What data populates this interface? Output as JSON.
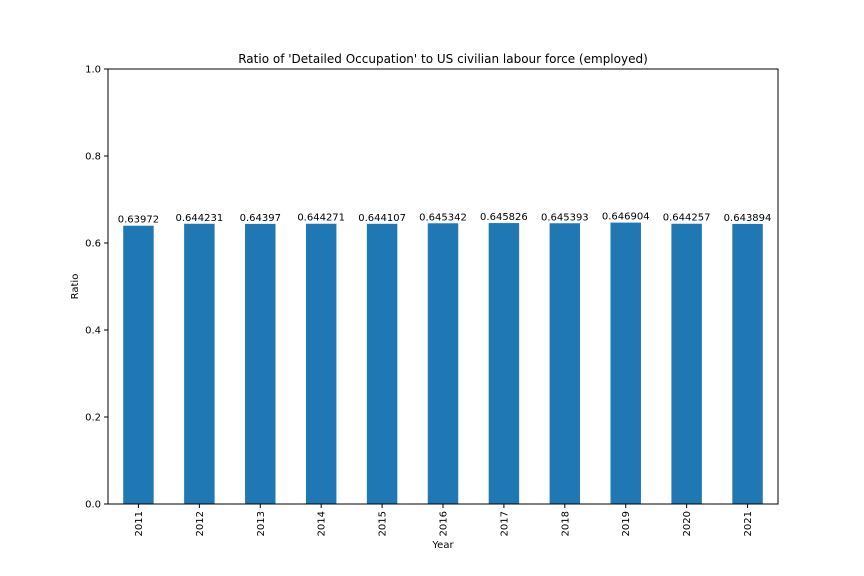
{
  "chart_data": {
    "type": "bar",
    "title": "Ratio of 'Detailed Occupation' to US civilian labour force (employed)",
    "xlabel": "Year",
    "ylabel": "Ratio",
    "ylim": [
      0,
      1.0
    ],
    "yticks": [
      "0.0",
      "0.2",
      "0.4",
      "0.6",
      "0.8",
      "1.0"
    ],
    "categories": [
      "2011",
      "2012",
      "2013",
      "2014",
      "2015",
      "2016",
      "2017",
      "2018",
      "2019",
      "2020",
      "2021"
    ],
    "values": [
      0.63972,
      0.644231,
      0.64397,
      0.644271,
      0.644107,
      0.645342,
      0.645826,
      0.645393,
      0.646904,
      0.644257,
      0.643894
    ],
    "value_labels": [
      "0.63972",
      "0.644231",
      "0.64397",
      "0.644271",
      "0.644107",
      "0.645342",
      "0.645826",
      "0.645393",
      "0.646904",
      "0.644257",
      "0.643894"
    ],
    "bar_color": "#1f77b4",
    "grid": false,
    "legend": "none"
  }
}
